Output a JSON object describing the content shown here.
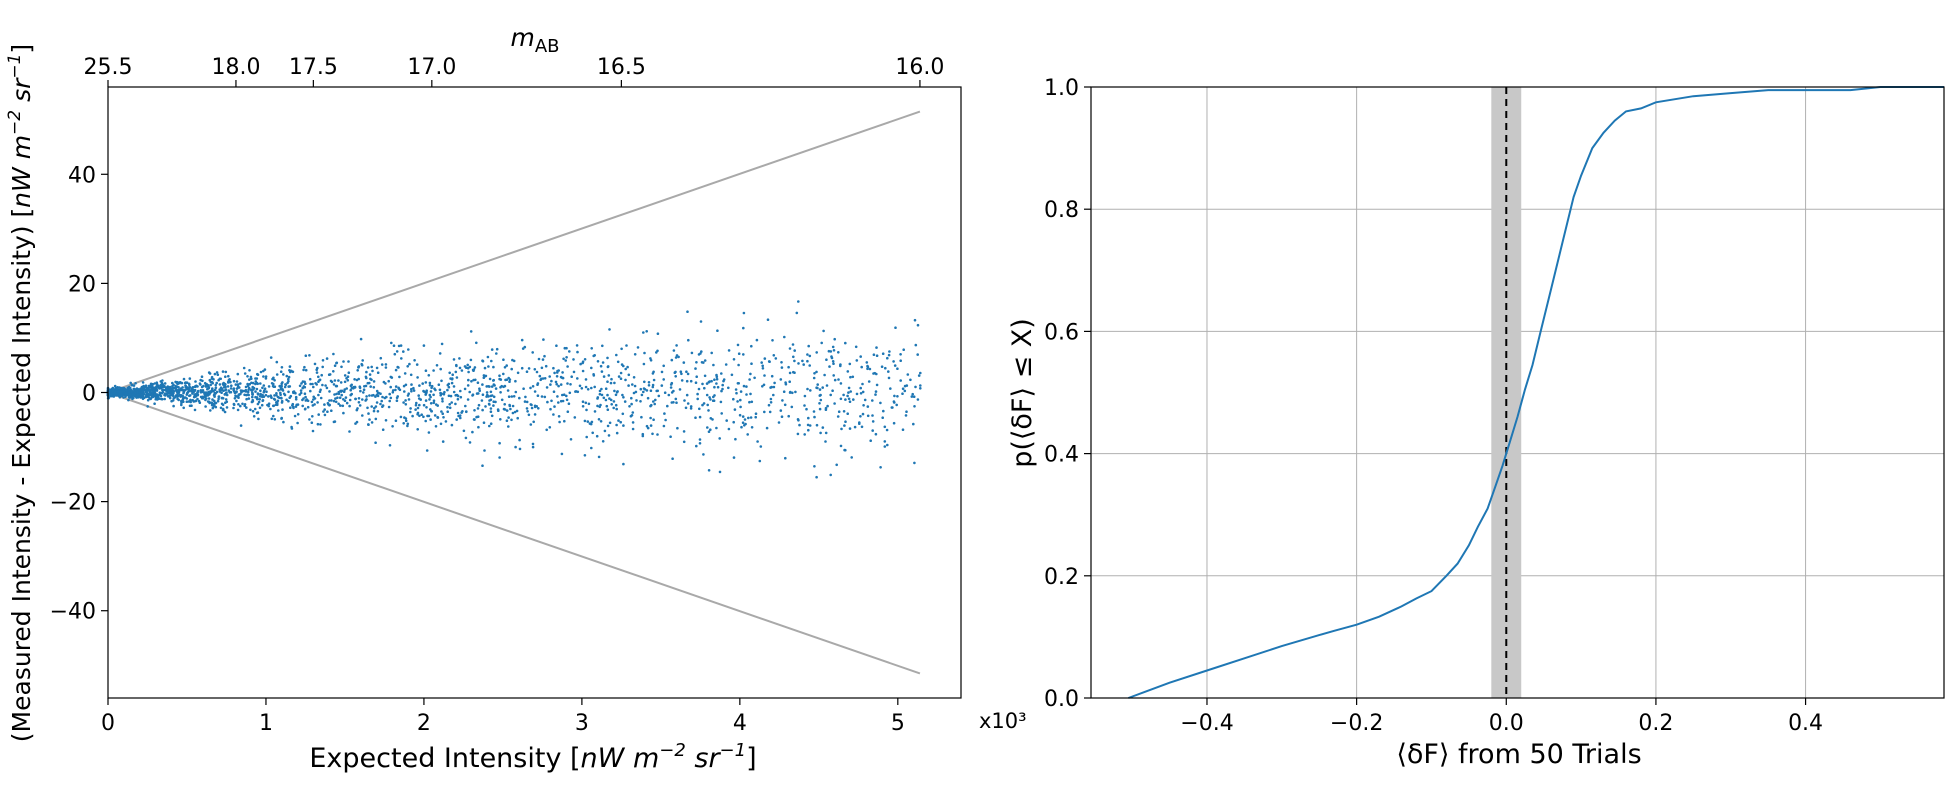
{
  "chart_data": [
    {
      "type": "scatter",
      "title": "",
      "xlabel_main": "Expected Intensity [",
      "xlabel_unit": "nW m",
      "xlabel_exp": "−2",
      "xlabel_unit2": " sr",
      "xlabel_exp2": "−1",
      "xlabel_end": "]",
      "xlabel_note": "x10³",
      "ylabel_main": "(Measured Intensity - Expected Intensity) [",
      "ylabel_unit": "nW m",
      "ylabel_exp": "−2",
      "ylabel_unit2": " sr",
      "ylabel_exp2": "−1",
      "ylabel_end": "]",
      "top_axis_label": "m",
      "top_axis_label_sub": "AB",
      "xlim": [
        0,
        5.4
      ],
      "ylim": [
        -56,
        56
      ],
      "xticks": [
        0,
        1,
        2,
        3,
        4,
        5
      ],
      "xtick_labels": [
        "0",
        "1",
        "2",
        "3",
        "4",
        "5"
      ],
      "yticks": [
        -40,
        -20,
        0,
        20,
        40
      ],
      "ytick_labels": [
        "−40",
        "−20",
        "0",
        "20",
        "40"
      ],
      "top_ticks_x": [
        0.0,
        0.81,
        1.3,
        2.05,
        3.25,
        5.14
      ],
      "top_tick_labels": [
        "25.5",
        "18.0",
        "17.5",
        "17.0",
        "16.5",
        "16.0"
      ],
      "envelope_upper": [
        [
          0,
          0
        ],
        [
          5.14,
          51.5
        ]
      ],
      "envelope_lower": [
        [
          0,
          0
        ],
        [
          5.14,
          -51.5
        ]
      ],
      "point_color": "#1f77b4",
      "envelope_color": "#a9a9a9",
      "point_count": 2600,
      "x_range": [
        0,
        5.15
      ],
      "scatter_note": "scatter cloud: noise widens with x; |y| up to ~2 near x=0.5, ~6 near x=1.5, ~12 near x=3, ~17 near x=4–5",
      "noise_envelope": [
        [
          0,
          0.3
        ],
        [
          0.5,
          1.2
        ],
        [
          1,
          2.4
        ],
        [
          2,
          3.6
        ],
        [
          3,
          4.8
        ],
        [
          4,
          5.6
        ],
        [
          5.15,
          6.2
        ]
      ]
    },
    {
      "type": "line",
      "title": "",
      "xlabel": "⟨δF⟩ from 50 Trials",
      "ylabel": "p(⟨δF⟩ ≤ X)",
      "xlim": [
        -0.555,
        0.585
      ],
      "ylim": [
        0,
        1.0
      ],
      "xticks": [
        -0.4,
        -0.2,
        0.0,
        0.2,
        0.4
      ],
      "xtick_labels": [
        "−0.4",
        "−0.2",
        "0.0",
        "0.2",
        "0.4"
      ],
      "yticks": [
        0.0,
        0.2,
        0.4,
        0.6,
        0.8,
        1.0
      ],
      "ytick_labels": [
        "0.0",
        "0.2",
        "0.4",
        "0.6",
        "0.8",
        "1.0"
      ],
      "grid": true,
      "line_color": "#1f77b4",
      "shade_band": [
        -0.02,
        0.02
      ],
      "shade_color": "#c8c8c8",
      "vline_x": 0.0,
      "x": [
        -0.505,
        -0.45,
        -0.4,
        -0.35,
        -0.3,
        -0.25,
        -0.23,
        -0.2,
        -0.17,
        -0.14,
        -0.12,
        -0.1,
        -0.08,
        -0.065,
        -0.05,
        -0.038,
        -0.025,
        -0.015,
        -0.005,
        0.005,
        0.015,
        0.025,
        0.035,
        0.045,
        0.06,
        0.075,
        0.09,
        0.1,
        0.115,
        0.13,
        0.145,
        0.16,
        0.18,
        0.2,
        0.25,
        0.3,
        0.35,
        0.4,
        0.43,
        0.46,
        0.5,
        0.52,
        0.6
      ],
      "y": [
        0.0,
        0.025,
        0.045,
        0.065,
        0.085,
        0.103,
        0.11,
        0.12,
        0.133,
        0.15,
        0.163,
        0.175,
        0.2,
        0.22,
        0.25,
        0.28,
        0.31,
        0.345,
        0.38,
        0.42,
        0.46,
        0.505,
        0.545,
        0.595,
        0.67,
        0.745,
        0.82,
        0.855,
        0.9,
        0.925,
        0.945,
        0.96,
        0.965,
        0.975,
        0.985,
        0.99,
        0.995,
        0.995,
        0.995,
        0.995,
        1.0,
        1.0,
        1.0
      ]
    }
  ]
}
